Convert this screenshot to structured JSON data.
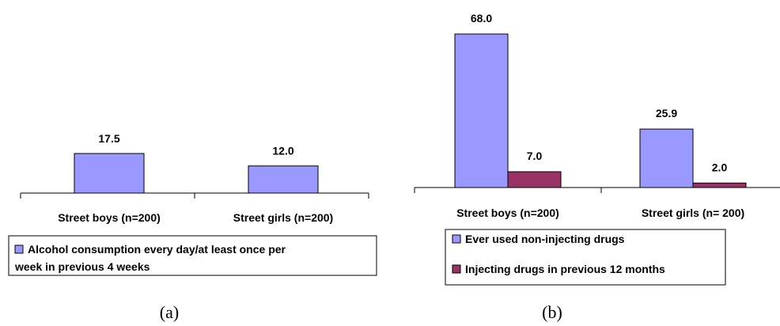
{
  "colors": {
    "series_a": "#9999ff",
    "series_b": "#993366",
    "axis": "#000000"
  },
  "chart_data": [
    {
      "type": "bar",
      "panel_label": "(a)",
      "categories": [
        "Street boys (n=200)",
        "Street girls (n=200)"
      ],
      "series": [
        {
          "name": "Alcohol consumption every day/at least once per week in previous 4 weeks",
          "values": [
            17.5,
            12.0
          ]
        }
      ],
      "value_labels": [
        "17.5",
        "12.0"
      ],
      "legend_lines": [
        "Alcohol consumption every day/at least once per",
        "week in previous 4 weeks"
      ],
      "legend": "bottom",
      "ylim": [
        0,
        70
      ],
      "grid": false
    },
    {
      "type": "bar",
      "panel_label": "(b)",
      "categories": [
        "Street boys (n=200)",
        "Street girls (n= 200)"
      ],
      "series": [
        {
          "name": "Ever used non-injecting drugs",
          "values": [
            68.0,
            25.9
          ]
        },
        {
          "name": "Injecting drugs in previous 12 months",
          "values": [
            7.0,
            2.0
          ]
        }
      ],
      "value_labels": [
        [
          "68.0",
          "25.9"
        ],
        [
          "7.0",
          "2.0"
        ]
      ],
      "legend": "bottom",
      "ylim": [
        0,
        72
      ],
      "grid": false
    }
  ]
}
